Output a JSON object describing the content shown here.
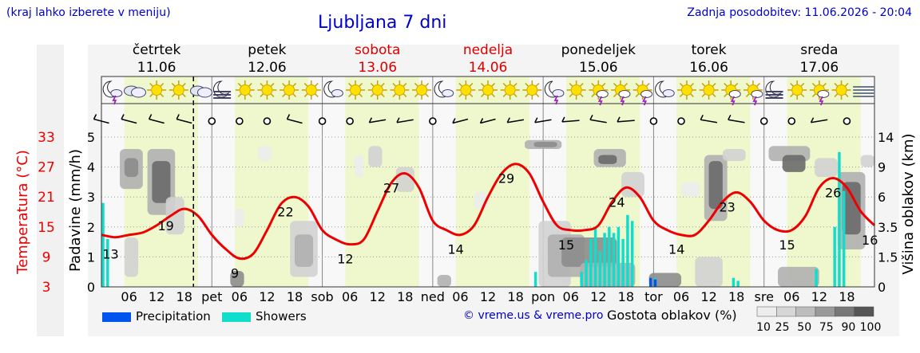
{
  "header": {
    "note": "(kraj lahko izberete v meniju)",
    "title": "Ljubljana 7 dni",
    "updated": "Zadnja posodobitev: 11.06.2026 - 20:04",
    "credit": "© vreme.us & vreme.pro"
  },
  "colors": {
    "temp": "#ee0000",
    "weekend": "#dd0000",
    "precip": "#0055ee",
    "showers": "#11ddcc",
    "day_band": "#eef8cc",
    "night_band": "#f6f6f6"
  },
  "chart_data": {
    "type": "line",
    "days": [
      {
        "name": "četrtek",
        "date": "11.06",
        "weekend": false
      },
      {
        "name": "petek",
        "date": "12.06",
        "weekend": false
      },
      {
        "name": "sobota",
        "date": "13.06",
        "weekend": true
      },
      {
        "name": "nedelja",
        "date": "14.06",
        "weekend": true
      },
      {
        "name": "ponedeljek",
        "date": "15.06",
        "weekend": false
      },
      {
        "name": "torek",
        "date": "16.06",
        "weekend": false
      },
      {
        "name": "sreda",
        "date": "17.06",
        "weekend": false
      }
    ],
    "day_axis_labels": [
      "pet",
      "sob",
      "ned",
      "pon",
      "tor",
      "sre"
    ],
    "hour_ticks": [
      "06",
      "12",
      "18"
    ],
    "temperature": {
      "axis_label": "Temperatura (°C)",
      "ticks": [
        3,
        9,
        15,
        21,
        27,
        33
      ],
      "range": [
        3,
        33
      ],
      "hours": [
        0,
        3,
        6,
        9,
        12,
        15,
        18,
        21,
        24,
        27,
        30,
        33,
        36,
        39,
        42,
        45,
        48,
        51,
        54,
        57,
        60,
        63,
        66,
        69,
        72,
        75,
        78,
        81,
        84,
        87,
        90,
        93,
        96,
        99,
        102,
        105,
        108,
        111,
        114,
        117,
        120,
        123,
        126,
        129,
        132,
        135,
        138,
        141,
        144,
        147,
        150,
        153,
        156,
        159,
        162,
        165,
        168
      ],
      "values": [
        14,
        13.5,
        14,
        14.5,
        16,
        18,
        19.5,
        18,
        14,
        11,
        9,
        10,
        15,
        20.5,
        22,
        20,
        15,
        13,
        12,
        13,
        19,
        25,
        27,
        24,
        17,
        15,
        14,
        16,
        22,
        27,
        29,
        27,
        21,
        16,
        15,
        15,
        16,
        21,
        24,
        22,
        17,
        15,
        14,
        14,
        17,
        21,
        23,
        21,
        17,
        15,
        15,
        18,
        24,
        26,
        24,
        19,
        16
      ],
      "labels": [
        {
          "h": 2,
          "v": 13
        },
        {
          "h": 14,
          "v": 19
        },
        {
          "h": 29,
          "v": 9
        },
        {
          "h": 40,
          "v": 22
        },
        {
          "h": 53,
          "v": 12
        },
        {
          "h": 63,
          "v": 27
        },
        {
          "h": 77,
          "v": 14
        },
        {
          "h": 88,
          "v": 29
        },
        {
          "h": 101,
          "v": 15
        },
        {
          "h": 112,
          "v": 24
        },
        {
          "h": 125,
          "v": 14
        },
        {
          "h": 136,
          "v": 23
        },
        {
          "h": 149,
          "v": 15
        },
        {
          "h": 159,
          "v": 26
        },
        {
          "h": 167,
          "v": 16
        }
      ]
    },
    "precipitation": {
      "axis_label": "Padavine (mm/h)",
      "ticks": [
        0,
        1,
        2,
        3,
        4,
        5
      ],
      "range": [
        0,
        5
      ],
      "precip_bars": [
        {
          "h": 119,
          "v": 0.3
        },
        {
          "h": 120,
          "v": 0.25
        }
      ],
      "shower_bars": [
        {
          "h": 0,
          "v": 2.8
        },
        {
          "h": 1,
          "v": 1.6
        },
        {
          "h": 94,
          "v": 0.5
        },
        {
          "h": 104,
          "v": 0.5
        },
        {
          "h": 105,
          "v": 0.9
        },
        {
          "h": 106,
          "v": 1.6
        },
        {
          "h": 107,
          "v": 2.0
        },
        {
          "h": 108,
          "v": 1.2
        },
        {
          "h": 109,
          "v": 1.8
        },
        {
          "h": 110,
          "v": 2.0
        },
        {
          "h": 111,
          "v": 1.8
        },
        {
          "h": 112,
          "v": 2.0
        },
        {
          "h": 113,
          "v": 1.6
        },
        {
          "h": 114,
          "v": 2.4
        },
        {
          "h": 115,
          "v": 2.2
        },
        {
          "h": 120,
          "v": 0.3
        },
        {
          "h": 137,
          "v": 0.3
        },
        {
          "h": 138,
          "v": 0.2
        },
        {
          "h": 155,
          "v": 0.6
        },
        {
          "h": 159,
          "v": 2.0
        },
        {
          "h": 160,
          "v": 4.5
        },
        {
          "h": 161,
          "v": 3.2
        }
      ]
    },
    "cloud_height": {
      "axis_label": "Višina oblakov (km)",
      "ticks": [
        0,
        1.5,
        3.5,
        6.0,
        9.0,
        14
      ],
      "range": [
        0,
        14
      ],
      "blobs": [
        {
          "h0": 4,
          "h1": 9,
          "y0": 6.8,
          "y1": 12,
          "d": 50
        },
        {
          "h0": 5,
          "h1": 8,
          "y0": 8,
          "y1": 10.5,
          "d": 75
        },
        {
          "h0": 10,
          "h1": 16,
          "y0": 4.5,
          "y1": 12,
          "d": 50
        },
        {
          "h0": 11,
          "h1": 15,
          "y0": 5.5,
          "y1": 10,
          "d": 90
        },
        {
          "h0": 14,
          "h1": 18,
          "y0": 3,
          "y1": 6,
          "d": 25
        },
        {
          "h0": 5,
          "h1": 8,
          "y0": 0.5,
          "y1": 2.8,
          "d": 25
        },
        {
          "h0": 28,
          "h1": 31,
          "y0": 0,
          "y1": 0.8,
          "d": 75
        },
        {
          "h0": 29,
          "h1": 31,
          "y0": 3.5,
          "y1": 5,
          "d": 10
        },
        {
          "h0": 34,
          "h1": 37,
          "y0": 10,
          "y1": 12.5,
          "d": 10
        },
        {
          "h0": 41,
          "h1": 47,
          "y0": 0.5,
          "y1": 4,
          "d": 25
        },
        {
          "h0": 42,
          "h1": 46,
          "y0": 1,
          "y1": 3,
          "d": 50
        },
        {
          "h0": 55,
          "h1": 57,
          "y0": 8,
          "y1": 11,
          "d": 10
        },
        {
          "h0": 58,
          "h1": 61,
          "y0": 9,
          "y1": 12.5,
          "d": 25
        },
        {
          "h0": 64,
          "h1": 68,
          "y0": 6.5,
          "y1": 9,
          "d": 25
        },
        {
          "h0": 73,
          "h1": 76,
          "y0": 0,
          "y1": 0.6,
          "d": 50
        },
        {
          "h0": 81,
          "h1": 84,
          "y0": 5,
          "y1": 6.5,
          "d": 10
        },
        {
          "h0": 92,
          "h1": 100,
          "y0": 12,
          "y1": 13.5,
          "d": 50
        },
        {
          "h0": 94,
          "h1": 99,
          "y0": 12.3,
          "y1": 13.2,
          "d": 75
        },
        {
          "h0": 95,
          "h1": 102,
          "y0": 0,
          "y1": 4,
          "d": 25
        },
        {
          "h0": 97,
          "h1": 105,
          "y0": 0.5,
          "y1": 3,
          "d": 50
        },
        {
          "h0": 100,
          "h1": 112,
          "y0": 1,
          "y1": 2.8,
          "d": 75
        },
        {
          "h0": 104,
          "h1": 116,
          "y0": 0,
          "y1": 1.2,
          "d": 50
        },
        {
          "h0": 107,
          "h1": 114,
          "y0": 9,
          "y1": 12,
          "d": 50
        },
        {
          "h0": 108,
          "h1": 112,
          "y0": 9.5,
          "y1": 11,
          "d": 90
        },
        {
          "h0": 113,
          "h1": 118,
          "y0": 6,
          "y1": 8.5,
          "d": 25
        },
        {
          "h0": 119,
          "h1": 126,
          "y0": 0,
          "y1": 0.7,
          "d": 75
        },
        {
          "h0": 126,
          "h1": 130,
          "y0": 6,
          "y1": 7.5,
          "d": 10
        },
        {
          "h0": 131,
          "h1": 136,
          "y0": 4,
          "y1": 11,
          "d": 50
        },
        {
          "h0": 132,
          "h1": 135,
          "y0": 5,
          "y1": 10,
          "d": 90
        },
        {
          "h0": 129,
          "h1": 135,
          "y0": 0,
          "y1": 1.5,
          "d": 25
        },
        {
          "h0": 135,
          "h1": 140,
          "y0": 10,
          "y1": 12,
          "d": 25
        },
        {
          "h0": 145,
          "h1": 154,
          "y0": 10,
          "y1": 12.5,
          "d": 50
        },
        {
          "h0": 148,
          "h1": 153,
          "y0": 8.5,
          "y1": 11,
          "d": 90
        },
        {
          "h0": 147,
          "h1": 156,
          "y0": 0,
          "y1": 1,
          "d": 50
        },
        {
          "h0": 155,
          "h1": 160,
          "y0": 8,
          "y1": 10.5,
          "d": 25
        },
        {
          "h0": 160,
          "h1": 166,
          "y0": 2,
          "y1": 8.5,
          "d": 50
        },
        {
          "h0": 161,
          "h1": 165,
          "y0": 3,
          "y1": 7.5,
          "d": 90
        },
        {
          "h0": 165,
          "h1": 168,
          "y0": 9,
          "y1": 11,
          "d": 25
        }
      ]
    },
    "icons": [
      "moon-cloud-lightning",
      "cloudy",
      "sun",
      "sun",
      "cloud-rain-sun",
      "moon-fog",
      "sun",
      "sun",
      "sun",
      "sun",
      "moon-cloud",
      "sun",
      "sun",
      "sun",
      "sun",
      "moon-cloud",
      "sun",
      "sun",
      "sun",
      "sun",
      "moon-cloud-lightning",
      "sun",
      "sun-storm",
      "sun-storm",
      "sun-storm",
      "moon-cloud-rain",
      "sun",
      "sun",
      "sun-storm",
      "sun-storm",
      "moon-fog",
      "sun",
      "sun-storm",
      "sun",
      "fog"
    ],
    "wind": {
      "calm_marker": "o",
      "hours": [
        0,
        6,
        12,
        18,
        24,
        30,
        36,
        42,
        48,
        54,
        60,
        66,
        72,
        78,
        84,
        90,
        96,
        102,
        108,
        114,
        120,
        126,
        132,
        138,
        144,
        150,
        156,
        162
      ],
      "directions_deg": [
        300,
        300,
        300,
        300,
        null,
        null,
        null,
        300,
        null,
        null,
        250,
        250,
        null,
        240,
        240,
        250,
        250,
        260,
        290,
        260,
        null,
        null,
        290,
        290,
        null,
        null,
        250,
        null
      ]
    },
    "current_time_hour": 20,
    "legend": {
      "precipitation": "Precipitation",
      "showers": "Showers",
      "cloud_density_label": "Gostota oblakov (%)",
      "cloud_density_ticks": [
        10,
        25,
        50,
        75,
        90,
        100
      ],
      "cloud_density_colors": [
        "#ededed",
        "#d6d6d6",
        "#bdbdbd",
        "#9a9a9a",
        "#777777",
        "#555555"
      ]
    }
  }
}
